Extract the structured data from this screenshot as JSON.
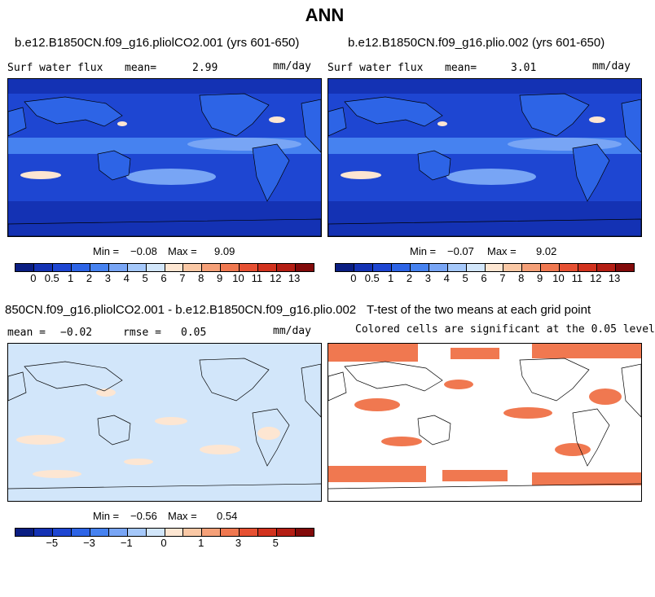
{
  "title": "ANN",
  "panels": {
    "p1": {
      "title": "b.e12.B1850CN.f09_g16.pliolCO2.001 (yrs 601-650)",
      "field": "Surf water flux",
      "mean_label": "mean=",
      "mean": "2.99",
      "units": "mm/day",
      "min_label": "Min =",
      "min": "−0.08",
      "max_label": "Max =",
      "max": "9.09"
    },
    "p2": {
      "title": "b.e12.B1850CN.f09_g16.plio.002 (yrs 601-650)",
      "field": "Surf water flux",
      "mean_label": "mean=",
      "mean": "3.01",
      "units": "mm/day",
      "min_label": "Min =",
      "min": "−0.07",
      "max_label": "Max =",
      "max": "9.02"
    },
    "p3": {
      "title": "850CN.f09_g16.pliolCO2.001 - b.e12.B1850CN.f09_g16.plio.002",
      "mean_label": "mean =",
      "mean": "−0.02",
      "rmse_label": "rmse =",
      "rmse": "0.05",
      "units": "mm/day",
      "min_label": "Min =",
      "min": "−0.56",
      "max_label": "Max =",
      "max": "0.54"
    },
    "p4": {
      "title": "T-test of the two means at each grid point",
      "subtitle": "Colored cells are significant at the 0.05 level"
    }
  },
  "colorbars": {
    "abs_colors": [
      "#0a1e82",
      "#1432b4",
      "#1e46d2",
      "#2d64e6",
      "#4682f0",
      "#78a5f5",
      "#a5c8fa",
      "#d2e6fa",
      "#fde6d2",
      "#fac8a5",
      "#f5a078",
      "#f07850",
      "#e65032",
      "#d2321e",
      "#b41e14",
      "#820a0a"
    ],
    "abs_ticks": [
      "0",
      "0.5",
      "1",
      "2",
      "3",
      "4",
      "5",
      "6",
      "7",
      "8",
      "9",
      "10",
      "11",
      "12",
      "13"
    ],
    "diff_colors": [
      "#0a1e82",
      "#1432b4",
      "#1e46d2",
      "#2d64e6",
      "#4682f0",
      "#78a5f5",
      "#a5c8fa",
      "#d2e6fa",
      "#fde6d2",
      "#fac8a5",
      "#f5a078",
      "#f07850",
      "#e65032",
      "#d2321e",
      "#b41e14",
      "#820a0a"
    ],
    "diff_ticks": [
      "−5",
      "−3",
      "−1",
      "0",
      "1",
      "3",
      "5"
    ]
  },
  "colors": {
    "ocean_deep": "#1e46d2",
    "land": "#2d64e6",
    "diff_bg": "#d2e6fa",
    "diff_pos": "#fde6d2",
    "sig": "#f07850"
  }
}
